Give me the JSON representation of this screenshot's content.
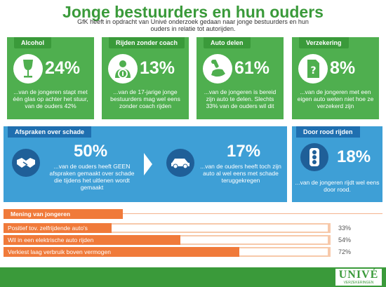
{
  "title": "Jonge bestuurders en hun ouders",
  "subtitle": "GfK heeft in opdracht van Univé onderzoek gedaan naar  jonge bestuurders en hun ouders in relatie tot autorijden.",
  "colors": {
    "green": "#4faf4f",
    "dark_green": "#3a9a3a",
    "blue": "#3e9fd6",
    "dark_blue": "#1f6fb0",
    "orange": "#f07a3a"
  },
  "cards": [
    {
      "tab": "Alcohol",
      "icon": "wine-glass-icon",
      "pct": "24%",
      "desc": "...van de jongeren stapt met één glas op achter het stuur, van de ouders 42%"
    },
    {
      "tab": "Rijden zonder coach",
      "icon": "driver-steering-wheel-icon",
      "pct": "13%",
      "desc": "...van de 17-jarige jonge bestuurders mag wel eens zonder coach rijden"
    },
    {
      "tab": "Auto delen",
      "icon": "hand-with-car-key-icon",
      "pct": "61%",
      "desc": "...van de jongeren is bereid zijn auto te delen. Slechts 33% van de ouders wil dit"
    },
    {
      "tab": "Verzekering",
      "icon": "document-question-icon",
      "pct": "8%",
      "desc": "...van de jongeren met een eigen auto weten niet hoe ze verzekerd zijn"
    }
  ],
  "afspraken": {
    "tab": "Afspraken over schade",
    "left": {
      "icon": "handshake-icon",
      "pct": "50%",
      "desc": "...van de ouders heeft GEEN afspraken gemaakt over schade die tijdens het uitlenen wordt gemaakt"
    },
    "right": {
      "icon": "car-icon",
      "pct": "17%",
      "desc": "...van de ouders heeft toch zijn auto al wel eens met schade teruggekregen"
    }
  },
  "roodrijden": {
    "tab": "Door rood rijden",
    "icon": "traffic-light-icon",
    "pct": "18%",
    "desc": "...van de jongeren rijdt wel eens door rood."
  },
  "survey": {
    "tab": "Mening van jongeren",
    "rows": [
      {
        "label": "Positief tov. zelfrijdende auto's",
        "value": 33,
        "pct": "33%"
      },
      {
        "label": "Wil in een elektrische auto rijden",
        "value": 54,
        "pct": "54%"
      },
      {
        "label": "Verkiest laag verbruik boven vermogen",
        "value": 72,
        "pct": "72%"
      }
    ]
  },
  "logo": {
    "name": "UNIVÉ",
    "tagline": "VERZEKERINGEN"
  }
}
